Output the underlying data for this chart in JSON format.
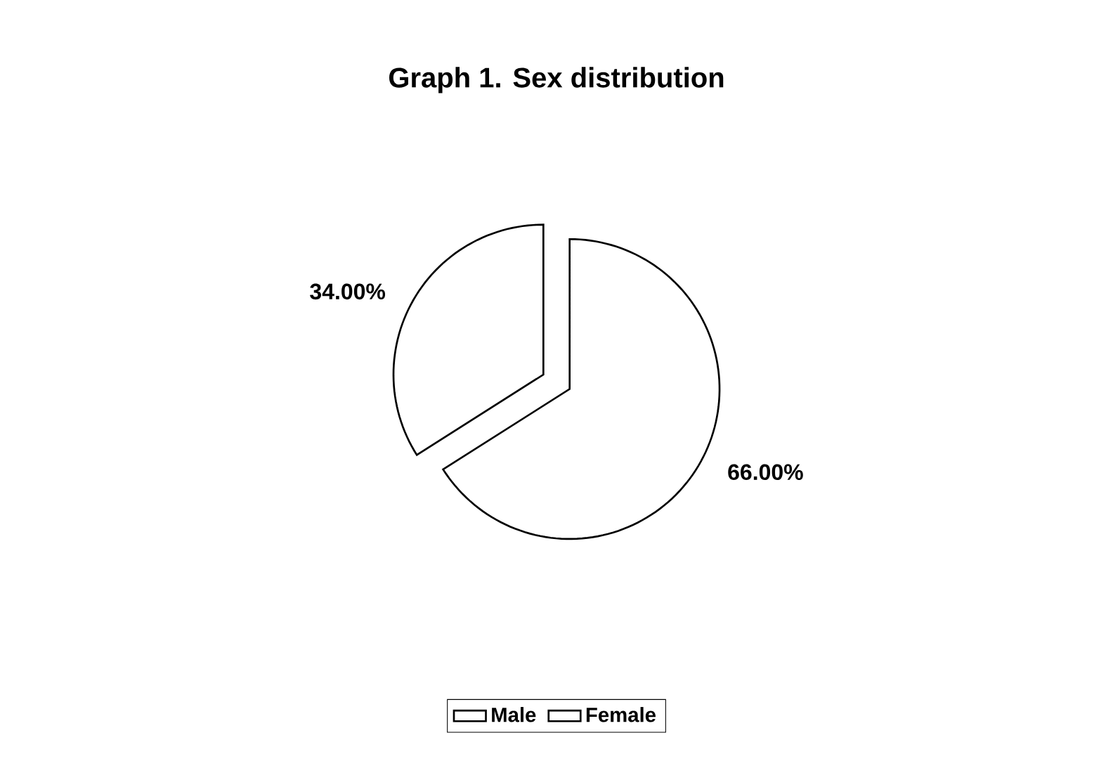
{
  "chart_data": {
    "type": "pie",
    "title": "Graph 1. Sex distribution",
    "categories": [
      "Male",
      "Female"
    ],
    "values": [
      66,
      34
    ],
    "colors": [
      "#ffffff",
      "#ffffff"
    ],
    "value_labels": [
      "66.00%",
      "34.00%"
    ],
    "legend": "bottom"
  }
}
